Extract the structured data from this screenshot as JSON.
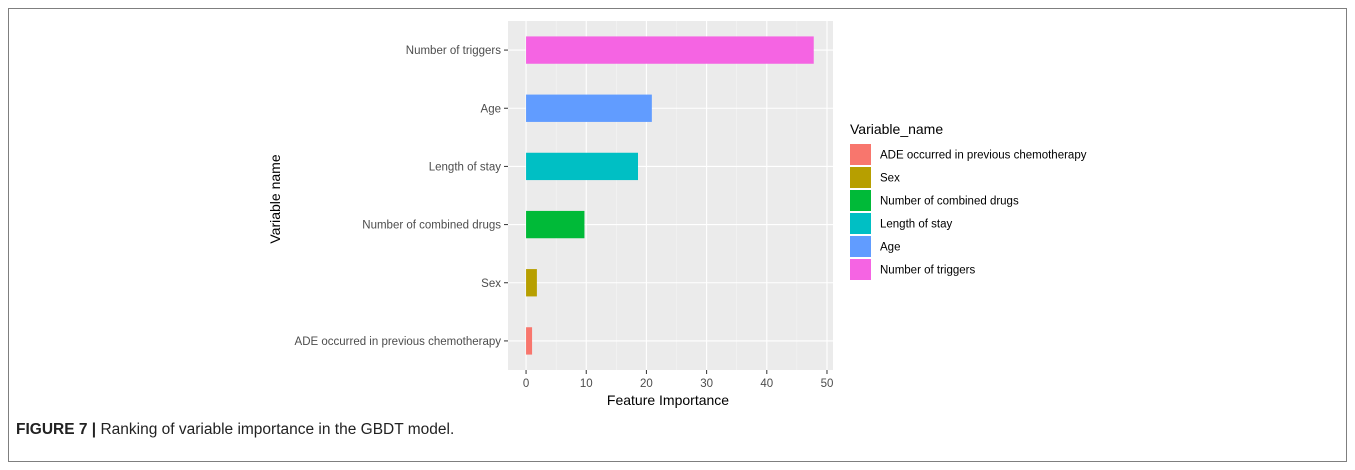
{
  "caption": {
    "label": "FIGURE 7 |",
    "text": " Ranking of variable importance in the GBDT model."
  },
  "chart_data": {
    "type": "bar",
    "orientation": "horizontal",
    "categories": [
      "ADE occurred in previous chemotherapy",
      "Sex",
      "Number of combined drugs",
      "Length of stay",
      "Age",
      "Number of triggers"
    ],
    "values": [
      1.0,
      1.8,
      9.7,
      18.6,
      20.9,
      47.8
    ],
    "colors": [
      "#F8766D",
      "#B79F00",
      "#00BA38",
      "#00BFC4",
      "#619CFF",
      "#F564E3"
    ],
    "xlabel": "Feature Importance",
    "ylabel": "Variable name",
    "xlim": [
      -3,
      51
    ],
    "xticks": [
      "0",
      "10",
      "20",
      "30",
      "40",
      "50"
    ],
    "grid": true,
    "panel_background": "#EBEBEB",
    "legend": {
      "title": "Variable_name",
      "position": "right",
      "entries": [
        "ADE occurred in previous chemotherapy",
        "Sex",
        "Number of combined drugs",
        "Length of stay",
        "Age",
        "Number of triggers"
      ]
    }
  }
}
